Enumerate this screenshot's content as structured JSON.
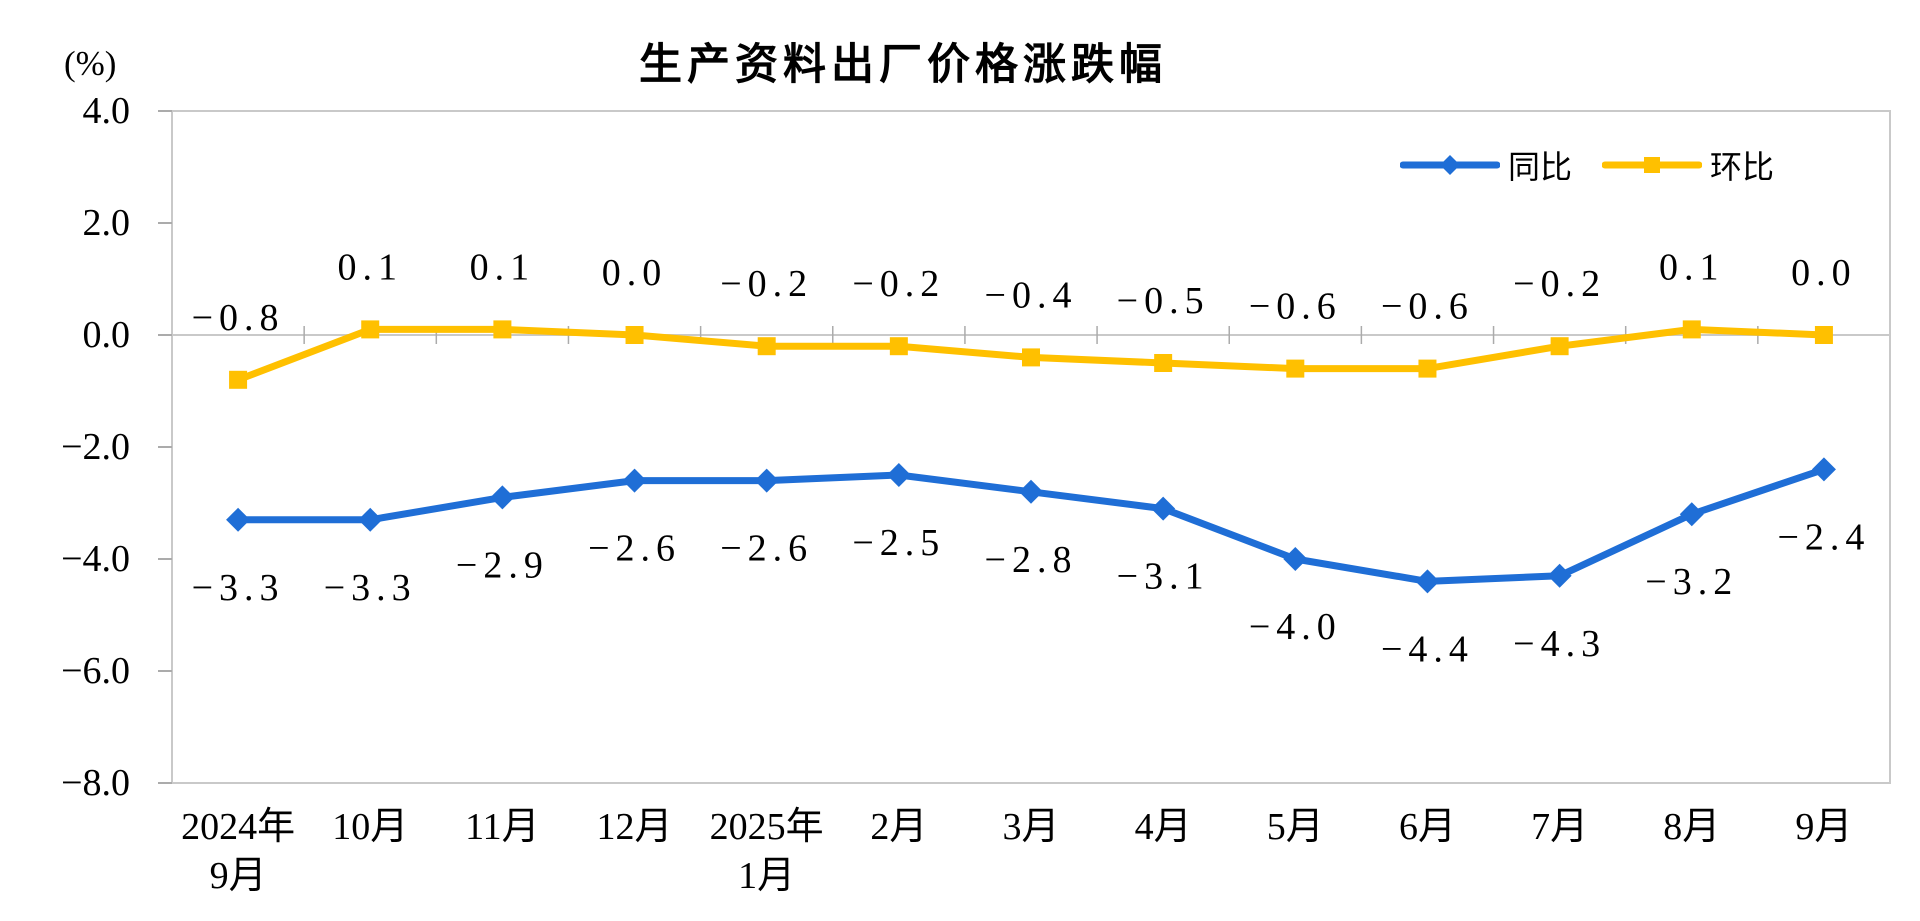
{
  "page": {
    "background": "#FFFFFF"
  },
  "header": {
    "title": "生产资料出厂价格涨跌幅",
    "unit_label": "(%)"
  },
  "colors": {
    "yoy_blue": "#1F6ED6",
    "mom_gold": "#FFC000",
    "axis_line": "#C9C9C9",
    "tick_mark": "#ABABAB",
    "label_text": "#000000"
  },
  "chart_data": {
    "type": "line",
    "title": "生产资料出厂价格涨跌幅",
    "unit": "(%)",
    "legend_position": "top-right",
    "grid": false,
    "y_axis": {
      "min": -8.0,
      "max": 4.0,
      "step": 2.0,
      "tick_labels": [
        "4.0",
        "2.0",
        "0.0",
        "-2.0",
        "-4.0",
        "-6.0",
        "-8.0"
      ]
    },
    "categories": [
      "2024年\n9月",
      "10月",
      "11月",
      "12月",
      "2025年\n1月",
      "2月",
      "3月",
      "4月",
      "5月",
      "6月",
      "7月",
      "8月",
      "9月"
    ],
    "series": [
      {
        "name": "同比",
        "marker": "diamond",
        "color": "#1F6ED6",
        "label_position": "below",
        "values": [
          -3.3,
          -3.3,
          -2.9,
          -2.6,
          -2.6,
          -2.5,
          -2.8,
          -3.1,
          -4.0,
          -4.4,
          -4.3,
          -3.2,
          -2.4
        ],
        "labels": [
          "-3.3",
          "-3.3",
          "-2.9",
          "-2.6",
          "-2.6",
          "-2.5",
          "-2.8",
          "-3.1",
          "-4.0",
          "-4.4",
          "-4.3",
          "-3.2",
          "-2.4"
        ]
      },
      {
        "name": "环比",
        "marker": "square",
        "color": "#FFC000",
        "label_position": "above",
        "values": [
          -0.8,
          0.1,
          0.1,
          0.0,
          -0.2,
          -0.2,
          -0.4,
          -0.5,
          -0.6,
          -0.6,
          -0.2,
          0.1,
          0.0
        ],
        "labels": [
          "-0.8",
          "0.1",
          "0.1",
          "0.0",
          "-0.2",
          "-0.2",
          "-0.4",
          "-0.5",
          "-0.6",
          "-0.6",
          "-0.2",
          "0.1",
          "0.0"
        ]
      }
    ]
  }
}
